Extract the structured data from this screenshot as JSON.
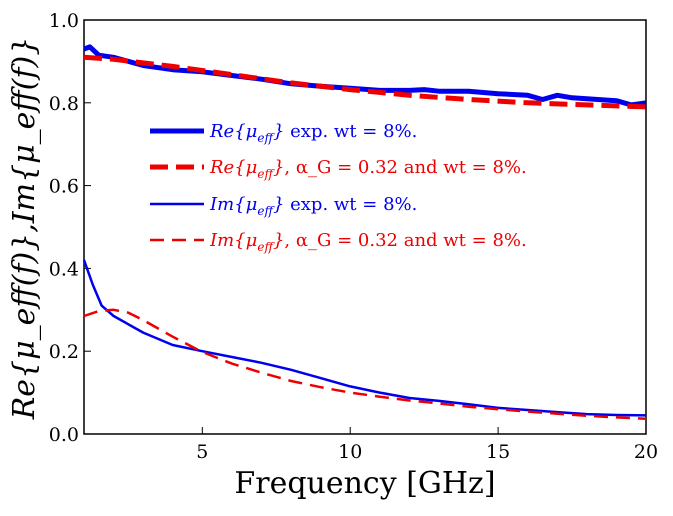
{
  "chart_data": {
    "type": "line",
    "xlabel": "Frequency [GHz]",
    "ylabel": "Re{μ_eff(f)},Im{μ_eff(f)}",
    "xlim": [
      1,
      20
    ],
    "ylim": [
      0,
      1.0
    ],
    "x_ticks": [
      "5",
      "10",
      "15",
      "20"
    ],
    "y_ticks": [
      "0.0",
      "0.2",
      "0.4",
      "0.6",
      "0.8",
      "1.0"
    ],
    "grid": false,
    "legend_position": "center",
    "series": [
      {
        "name": "Re{μ_eff} exp. wt = 8%.",
        "color": "#0000ee",
        "style": "solid-thick",
        "x": [
          1.0,
          1.2,
          1.5,
          2.0,
          3,
          4,
          5,
          6,
          7,
          8,
          9,
          10,
          11,
          12,
          12.5,
          13,
          14,
          15,
          16,
          16.5,
          17,
          17.5,
          18,
          19,
          19.5,
          20
        ],
        "y": [
          0.93,
          0.935,
          0.915,
          0.91,
          0.89,
          0.88,
          0.875,
          0.866,
          0.857,
          0.846,
          0.84,
          0.835,
          0.83,
          0.83,
          0.832,
          0.828,
          0.828,
          0.822,
          0.818,
          0.808,
          0.818,
          0.812,
          0.81,
          0.805,
          0.795,
          0.8
        ]
      },
      {
        "name": "Re{μ_eff}, α_G = 0.32 and wt = 8%.",
        "color": "#ee0000",
        "style": "dashed-thick",
        "x": [
          1,
          2,
          4,
          6,
          8,
          10,
          12,
          14,
          16,
          18,
          20
        ],
        "y": [
          0.91,
          0.905,
          0.888,
          0.868,
          0.848,
          0.832,
          0.818,
          0.808,
          0.8,
          0.795,
          0.79
        ]
      },
      {
        "name": "Im{μ_eff} exp. wt = 8%.",
        "color": "#0000ee",
        "style": "solid-thin",
        "x": [
          1.0,
          1.3,
          1.6,
          2,
          3,
          4,
          5,
          6,
          7,
          8,
          9,
          10,
          11,
          12,
          13,
          14,
          15,
          16,
          17,
          18,
          19,
          20
        ],
        "y": [
          0.42,
          0.36,
          0.31,
          0.285,
          0.245,
          0.215,
          0.2,
          0.186,
          0.172,
          0.155,
          0.135,
          0.115,
          0.1,
          0.087,
          0.08,
          0.072,
          0.063,
          0.058,
          0.053,
          0.048,
          0.046,
          0.045
        ]
      },
      {
        "name": "Im{μ_eff}, α_G = 0.32 and wt = 8%.",
        "color": "#ee0000",
        "style": "dashed-thin",
        "x": [
          1,
          1.5,
          2,
          2.5,
          3,
          4,
          5,
          6,
          7,
          8,
          9,
          10,
          11,
          12,
          13,
          14,
          15,
          16,
          17,
          18,
          19,
          20
        ],
        "y": [
          0.285,
          0.297,
          0.3,
          0.293,
          0.275,
          0.235,
          0.198,
          0.17,
          0.148,
          0.128,
          0.113,
          0.1,
          0.09,
          0.081,
          0.074,
          0.066,
          0.06,
          0.054,
          0.049,
          0.044,
          0.04,
          0.037
        ]
      }
    ],
    "legend": [
      {
        "lhs": "Re",
        "sub": "eff",
        "rhs": " exp. wt = 8%."
      },
      {
        "lhs": "Re",
        "sub": "eff",
        "rhs": ", α_G = 0.32 and wt = 8%."
      },
      {
        "lhs": "Im",
        "sub": "eff",
        "rhs": " exp. wt = 8%."
      },
      {
        "lhs": "Im",
        "sub": "eff",
        "rhs": ", α_G = 0.32 and wt = 8%."
      }
    ]
  }
}
